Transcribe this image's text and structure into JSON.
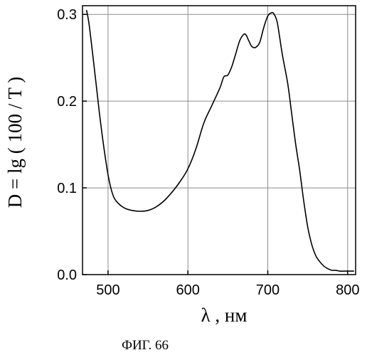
{
  "chart_data": {
    "type": "line",
    "title": "",
    "xlabel": "λ , нм",
    "ylabel": "D = lg ( 100 / T )",
    "caption": "ФИГ. 66",
    "xlim": [
      468,
      810
    ],
    "ylim": [
      0.0,
      0.31
    ],
    "xticks": [
      500,
      600,
      700,
      800
    ],
    "xtick_labels": [
      "500",
      "600",
      "700",
      "800"
    ],
    "yticks": [
      0.0,
      0.1,
      0.2,
      0.3
    ],
    "ytick_labels": [
      "0.0",
      "0.1",
      "0.2",
      "0.3"
    ],
    "grid": true,
    "series": [
      {
        "x": [
          473,
          476,
          480,
          485,
          490,
          495,
          500,
          505,
          510,
          520,
          530,
          540,
          550,
          560,
          570,
          580,
          590,
          600,
          610,
          620,
          630,
          640,
          645,
          650,
          655,
          660,
          665,
          670,
          673,
          676,
          680,
          685,
          690,
          695,
          700,
          705,
          708,
          712,
          718,
          725,
          730,
          735,
          740,
          745,
          750,
          755,
          760,
          765,
          770,
          775,
          780,
          785,
          790,
          795,
          800,
          808
        ],
        "y": [
          0.305,
          0.29,
          0.26,
          0.22,
          0.18,
          0.145,
          0.115,
          0.095,
          0.085,
          0.077,
          0.074,
          0.073,
          0.074,
          0.078,
          0.085,
          0.095,
          0.107,
          0.122,
          0.145,
          0.175,
          0.195,
          0.215,
          0.228,
          0.23,
          0.24,
          0.255,
          0.27,
          0.277,
          0.276,
          0.27,
          0.263,
          0.262,
          0.268,
          0.285,
          0.298,
          0.302,
          0.3,
          0.29,
          0.255,
          0.22,
          0.185,
          0.15,
          0.12,
          0.085,
          0.055,
          0.035,
          0.022,
          0.015,
          0.01,
          0.007,
          0.005,
          0.005,
          0.004,
          0.004,
          0.004,
          0.004
        ]
      }
    ]
  }
}
